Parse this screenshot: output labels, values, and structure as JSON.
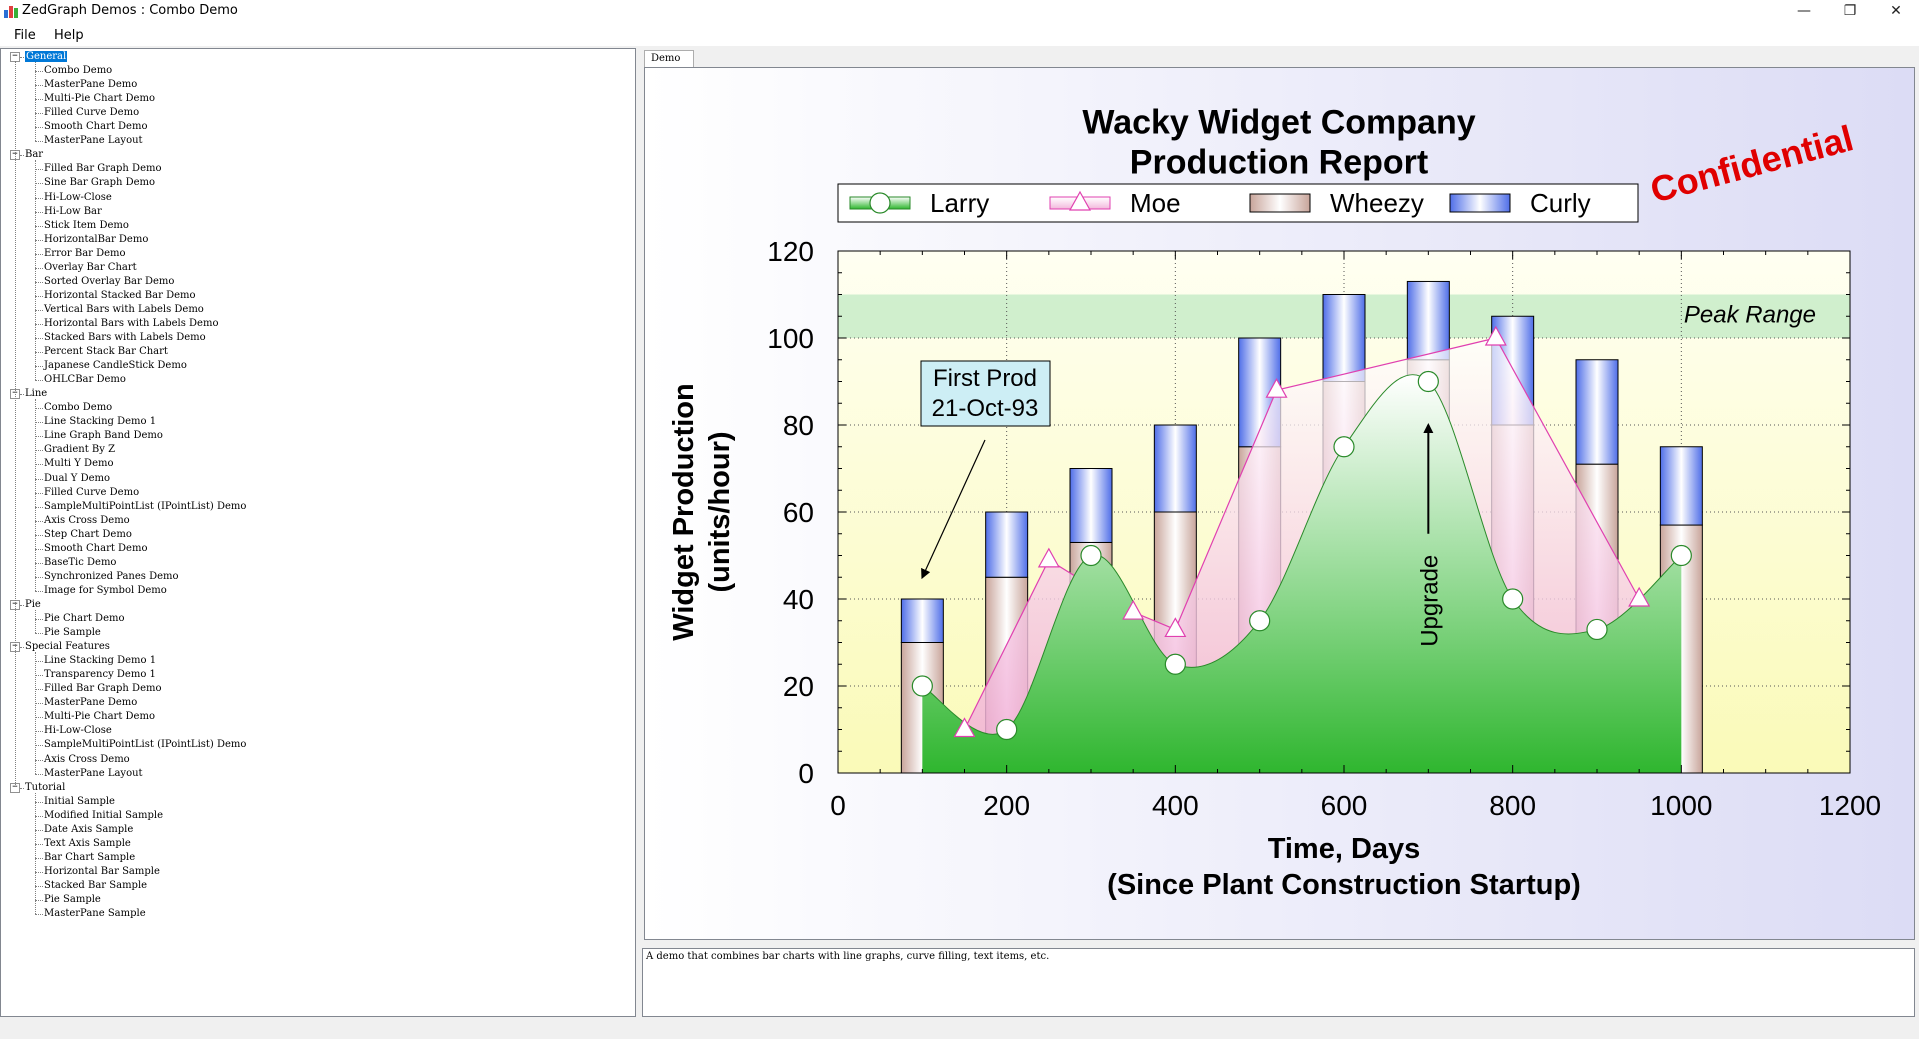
{
  "window": {
    "title": "ZedGraph Demos : Combo Demo",
    "controls": {
      "minimize": "—",
      "restore": "❐",
      "close": "✕"
    }
  },
  "menu": {
    "file": "File",
    "help": "Help"
  },
  "tree": [
    {
      "label": "General",
      "children": [
        "Combo Demo",
        "MasterPane Demo",
        "Multi-Pie Chart Demo",
        "Filled Curve Demo",
        "Smooth Chart Demo",
        "MasterPane Layout"
      ]
    },
    {
      "label": "Bar",
      "children": [
        "Filled Bar Graph Demo",
        "Sine Bar Graph Demo",
        "Hi-Low-Close",
        "Hi-Low Bar",
        "Stick Item Demo",
        "HorizontalBar Demo",
        "Error Bar Demo",
        "Overlay Bar Chart",
        "Sorted Overlay Bar Demo",
        "Horizontal Stacked Bar Demo",
        "Vertical Bars with Labels Demo",
        "Horizontal Bars with Labels Demo",
        "Stacked Bars with Labels Demo",
        "Percent Stack Bar Chart",
        "Japanese CandleStick Demo",
        "OHLCBar Demo"
      ]
    },
    {
      "label": "Line",
      "children": [
        "Combo Demo",
        "Line Stacking Demo 1",
        "Line Graph Band Demo",
        "Gradient By Z",
        "Multi Y Demo",
        "Dual Y Demo",
        "Filled Curve Demo",
        "SampleMultiPointList (IPointList) Demo",
        "Axis Cross Demo",
        "Step Chart Demo",
        "Smooth Chart Demo",
        "BaseTic Demo",
        "Synchronized Panes Demo",
        "Image for Symbol Demo"
      ]
    },
    {
      "label": "Pie",
      "children": [
        "Pie Chart Demo",
        "Pie Sample"
      ]
    },
    {
      "label": "Special Features",
      "children": [
        "Line Stacking Demo 1",
        "Transparency Demo 1",
        "Filled Bar Graph Demo",
        "MasterPane Demo",
        "Multi-Pie Chart Demo",
        "Hi-Low-Close",
        "SampleMultiPointList (IPointList) Demo",
        "Axis Cross Demo",
        "MasterPane Layout"
      ]
    },
    {
      "label": "Tutorial",
      "children": [
        "Initial Sample",
        "Modified Initial Sample",
        "Date Axis Sample",
        "Text Axis Sample",
        "Bar Chart Sample",
        "Horizontal Bar Sample",
        "Stacked Bar Sample",
        "Pie Sample",
        "MasterPane Sample"
      ]
    }
  ],
  "tabs": {
    "demo": "Demo"
  },
  "description": "A demo that combines bar charts with line graphs, curve filling, text items, etc.",
  "colors": {
    "larry": "#3cb93c",
    "moe": "#e040b0",
    "wheezy": "#c9a8a0",
    "curly": "#4a6fe0",
    "confidential": "#e00000",
    "peak_band": "#c8ecc8"
  },
  "chart_data": {
    "type": "bar",
    "title": "Wacky Widget Company\nProduction Report",
    "title_lines": [
      "Wacky Widget Company",
      "Production Report"
    ],
    "xlabel_lines": [
      "Time, Days",
      "(Since Plant Construction Startup)"
    ],
    "ylabel_lines": [
      "Widget Production",
      "(units/hour)"
    ],
    "xlim": [
      0,
      1200
    ],
    "ylim": [
      0,
      120
    ],
    "xticks": [
      0,
      200,
      400,
      600,
      800,
      1000,
      1200
    ],
    "yticks": [
      0,
      20,
      40,
      60,
      80,
      100,
      120
    ],
    "grid": true,
    "legend_position": "top",
    "legend": [
      "Larry",
      "Moe",
      "Wheezy",
      "Curly"
    ],
    "series": [
      {
        "name": "Larry",
        "kind": "smooth-filled-line",
        "x": [
          100,
          200,
          300,
          400,
          500,
          600,
          700,
          800,
          900,
          1000
        ],
        "y": [
          20,
          10,
          50,
          25,
          35,
          75,
          90,
          40,
          33,
          50
        ]
      },
      {
        "name": "Moe",
        "kind": "line-area",
        "x": [
          150,
          250,
          350,
          400,
          520,
          780,
          950
        ],
        "y": [
          10,
          49,
          37,
          33,
          88,
          100,
          40
        ]
      },
      {
        "name": "Wheezy",
        "kind": "stacked-bar",
        "x": [
          100,
          200,
          300,
          400,
          500,
          600,
          700,
          800,
          900,
          1000
        ],
        "y": [
          30,
          45,
          53,
          60,
          75,
          90,
          95,
          80,
          71,
          57
        ]
      },
      {
        "name": "Curly",
        "kind": "stacked-bar",
        "x": [
          100,
          200,
          300,
          400,
          500,
          600,
          700,
          800,
          900,
          1000
        ],
        "y": [
          10,
          15,
          17,
          20,
          25,
          20,
          18,
          25,
          24,
          18
        ]
      }
    ],
    "peak_range": {
      "label": "Peak Range",
      "y_from": 100,
      "y_to": 110
    },
    "annotations": {
      "first_prod_lines": [
        "First Prod",
        "21-Oct-93"
      ],
      "first_prod_arrow_to": {
        "x": 100,
        "y": 45
      },
      "upgrade": {
        "label": "Upgrade",
        "x": 700,
        "y_from": 55,
        "y_to": 80
      },
      "confidential": "Confidential"
    }
  }
}
